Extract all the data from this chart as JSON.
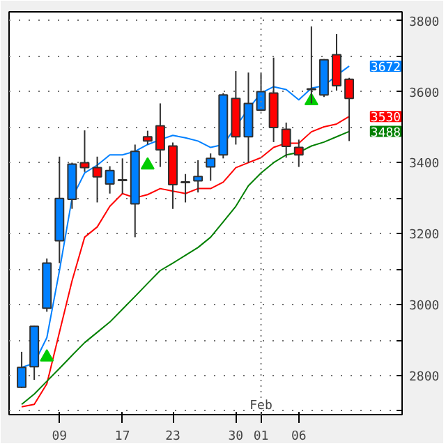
{
  "chart_data": {
    "type": "candlestick",
    "categories": [
      null,
      null,
      null,
      "09",
      null,
      null,
      null,
      null,
      "17",
      null,
      null,
      null,
      "23",
      null,
      null,
      null,
      null,
      "30",
      null,
      "01",
      null,
      null,
      "06",
      null,
      null,
      null,
      null
    ],
    "ohlc": [
      [
        2767,
        2867,
        2765,
        2823
      ],
      [
        2825,
        2940,
        2788,
        2939
      ],
      [
        2990,
        3130,
        2980,
        3117
      ],
      [
        3180,
        3417,
        3117,
        3299
      ],
      [
        3297,
        3400,
        3270,
        3396
      ],
      [
        3400,
        3491,
        3374,
        3386
      ],
      [
        3386,
        3417,
        3288,
        3360
      ],
      [
        3340,
        3390,
        3313,
        3378
      ],
      [
        3350,
        3412,
        3313,
        3352
      ],
      [
        3284,
        3451,
        3190,
        3432
      ],
      [
        3473,
        3490,
        3451,
        3461
      ],
      [
        3504,
        3567,
        3388,
        3436
      ],
      [
        3447,
        3457,
        3270,
        3338
      ],
      [
        3344,
        3368,
        3288,
        3346
      ],
      [
        3349,
        3407,
        3316,
        3361
      ],
      [
        3388,
        3426,
        3349,
        3412
      ],
      [
        3422,
        3596,
        3412,
        3591
      ],
      [
        3581,
        3658,
        3451,
        3473
      ],
      [
        3473,
        3654,
        3400,
        3567
      ],
      [
        3548,
        3654,
        3545,
        3600
      ],
      [
        3596,
        3696,
        3458,
        3499
      ],
      [
        3494,
        3513,
        3414,
        3446
      ],
      [
        3443,
        3465,
        3388,
        3422
      ],
      [
        3606,
        3784,
        3567,
        3608
      ],
      [
        3591,
        3692,
        3585,
        3690
      ],
      [
        3704,
        3762,
        3603,
        3617
      ],
      [
        3635,
        3639,
        3461,
        3581
      ]
    ],
    "colors": [
      "#0080ff",
      "#0080ff",
      "#0080ff",
      "#0080ff",
      "#0080ff",
      "#ff0000",
      "#ff0000",
      "#0080ff",
      "#0080ff",
      "#0080ff",
      "#ff0000",
      "#ff0000",
      "#ff0000",
      "#0080ff",
      "#0080ff",
      "#0080ff",
      "#0080ff",
      "#ff0000",
      "#0080ff",
      "#0080ff",
      "#ff0000",
      "#ff0000",
      "#ff0000",
      "#0080ff",
      "#0080ff",
      "#ff0000",
      "#ff0000"
    ],
    "series": [
      {
        "type": "line",
        "color": "#0080ff",
        "values": [
          2823,
          2835,
          2907,
          3096,
          3300,
          3371,
          3393,
          3422,
          3422,
          3432,
          3451,
          3465,
          3477,
          3470,
          3461,
          3443,
          3451,
          null,
          3552,
          3596,
          3614,
          3606,
          3577,
          3610,
          3617,
          3646,
          3672
        ],
        "value_labels": [
          null,
          null,
          null,
          null,
          null,
          null,
          null,
          null,
          null,
          null,
          null,
          null,
          null,
          null,
          null,
          null,
          null,
          null,
          null,
          null,
          null,
          null,
          null,
          null,
          null,
          null,
          "3672"
        ]
      },
      {
        "type": "line",
        "color": "#ff0000",
        "values": [
          2712,
          2719,
          2777,
          2922,
          3067,
          3190,
          3219,
          3277,
          3313,
          3301,
          3310,
          3327,
          3320,
          3313,
          3327,
          3327,
          3345,
          3386,
          3400,
          3414,
          3443,
          3455,
          3455,
          3487,
          3501,
          3509,
          3530
        ],
        "value_labels": [
          null,
          null,
          null,
          null,
          null,
          null,
          null,
          null,
          null,
          null,
          null,
          null,
          null,
          null,
          null,
          null,
          null,
          null,
          null,
          null,
          null,
          null,
          null,
          null,
          null,
          null,
          "3530"
        ]
      },
      {
        "type": "line",
        "color": "#008000",
        "values": [
          2719,
          2748,
          2784,
          2820,
          2857,
          2893,
          2922,
          2951,
          2987,
          3023,
          3060,
          3096,
          3117,
          3139,
          3161,
          3190,
          3233,
          3277,
          3335,
          3371,
          3400,
          3422,
          3429,
          3447,
          3458,
          3473,
          3488
        ],
        "value_labels": [
          null,
          null,
          null,
          null,
          null,
          null,
          null,
          null,
          null,
          null,
          null,
          null,
          null,
          null,
          null,
          null,
          null,
          null,
          null,
          null,
          null,
          null,
          null,
          null,
          null,
          null,
          "3488"
        ]
      },
      {
        "type": "scatter",
        "marker": "triangle",
        "color": "#00cc00",
        "values": [
          null,
          null,
          2852,
          null,
          null,
          null,
          null,
          null,
          null,
          null,
          3393,
          null,
          null,
          null,
          null,
          null,
          null,
          null,
          null,
          null,
          null,
          null,
          null,
          3574,
          null,
          null,
          null
        ]
      }
    ],
    "ylim": [
      2690,
      3825
    ],
    "yticks": [
      {
        "value": 2700,
        "label": null
      },
      2800,
      {
        "value": 2900,
        "label": null
      },
      3000,
      {
        "value": 3100,
        "label": null
      },
      3200,
      {
        "value": 3300,
        "label": null
      },
      3400,
      {
        "value": 3500,
        "label": null
      },
      3600,
      {
        "value": 3700,
        "label": null
      },
      3800
    ],
    "grid": "y",
    "ref_lines": [
      {
        "axis": "x",
        "value": "01",
        "line_style": "dotted",
        "color": "#808080"
      }
    ],
    "annotations": [
      {
        "text": "Feb",
        "x": "01"
      }
    ]
  }
}
